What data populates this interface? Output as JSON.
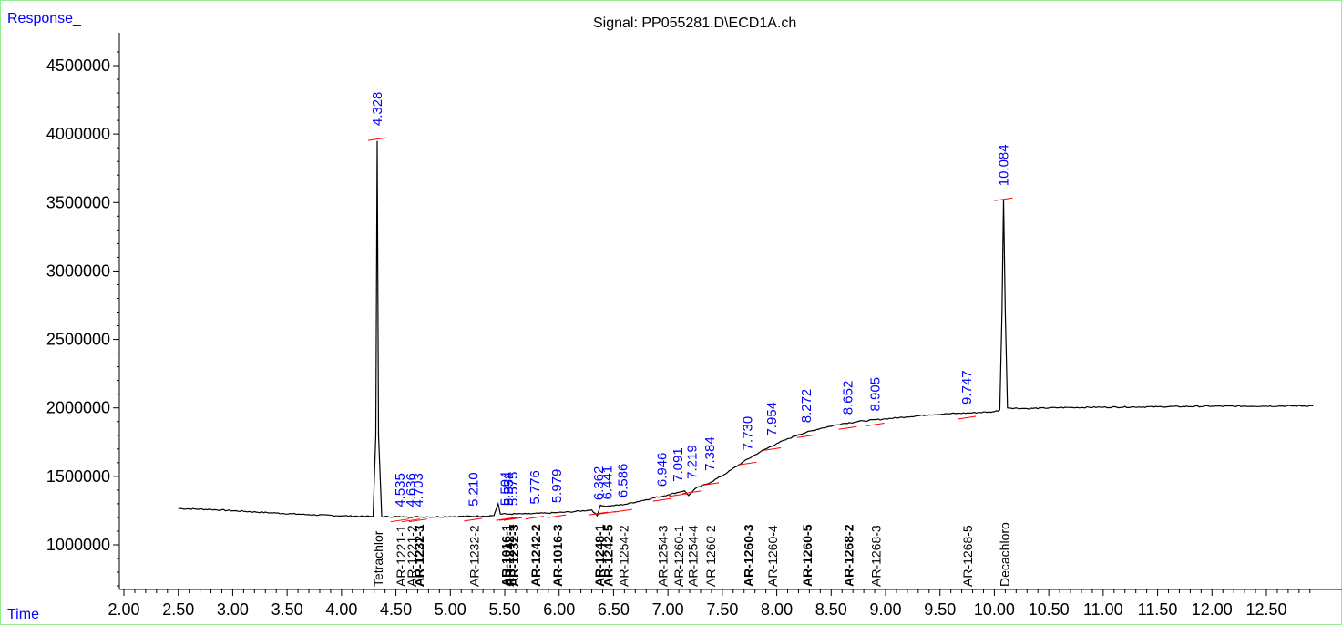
{
  "header": {
    "response_label": "Response_",
    "signal_title": "Signal: PP055281.D\\ECD1A.ch",
    "time_label": "Time"
  },
  "colors": {
    "trace": "#000000",
    "rt_label": "#0000ff",
    "baseline_mark": "#ff0000",
    "axis": "#000000",
    "frame": "#90ee90"
  },
  "chart_data": {
    "type": "line",
    "title": "Signal: PP055281.D\\ECD1A.ch",
    "xlabel": "Time",
    "ylabel": "Response_",
    "xlim": [
      1.98,
      12.93
    ],
    "ylim": [
      650000,
      4700000
    ],
    "xticks": [
      "2.00",
      "2.50",
      "3.00",
      "3.50",
      "4.00",
      "4.50",
      "5.00",
      "5.50",
      "6.00",
      "6.50",
      "7.00",
      "7.50",
      "8.00",
      "8.50",
      "9.00",
      "9.50",
      "10.00",
      "10.50",
      "11.00",
      "11.50",
      "12.00",
      "12.50"
    ],
    "yticks": [
      "1000000",
      "1500000",
      "2000000",
      "2500000",
      "3000000",
      "3500000",
      "4000000",
      "4500000"
    ],
    "grid": false,
    "series": [
      {
        "values": [
          [
            2.5,
            1265000
          ],
          [
            2.8,
            1258000
          ],
          [
            3.1,
            1245000
          ],
          [
            3.4,
            1232000
          ],
          [
            3.7,
            1220000
          ],
          [
            4.0,
            1212000
          ],
          [
            4.2,
            1208000
          ],
          [
            4.29,
            1208000
          ],
          [
            4.315,
            1800000
          ],
          [
            4.328,
            3950000
          ],
          [
            4.34,
            1800000
          ],
          [
            4.37,
            1206000
          ],
          [
            4.6,
            1204000
          ],
          [
            4.8,
            1204000
          ],
          [
            5.0,
            1206000
          ],
          [
            5.3,
            1210000
          ],
          [
            5.4,
            1214000
          ],
          [
            5.44,
            1300000
          ],
          [
            5.46,
            1225000
          ],
          [
            5.55,
            1225000
          ],
          [
            5.7,
            1226000
          ],
          [
            5.9,
            1232000
          ],
          [
            6.1,
            1240000
          ],
          [
            6.3,
            1255000
          ],
          [
            6.35,
            1212000
          ],
          [
            6.38,
            1290000
          ],
          [
            6.44,
            1282000
          ],
          [
            6.6,
            1295000
          ],
          [
            6.8,
            1330000
          ],
          [
            7.0,
            1365000
          ],
          [
            7.15,
            1395000
          ],
          [
            7.19,
            1360000
          ],
          [
            7.25,
            1410000
          ],
          [
            7.4,
            1460000
          ],
          [
            7.55,
            1530000
          ],
          [
            7.7,
            1610000
          ],
          [
            7.85,
            1680000
          ],
          [
            8.0,
            1740000
          ],
          [
            8.2,
            1805000
          ],
          [
            8.4,
            1850000
          ],
          [
            8.6,
            1885000
          ],
          [
            8.8,
            1905000
          ],
          [
            9.0,
            1920000
          ],
          [
            9.2,
            1935000
          ],
          [
            9.4,
            1950000
          ],
          [
            9.6,
            1958000
          ],
          [
            9.8,
            1964000
          ],
          [
            10.0,
            1972000
          ],
          [
            10.05,
            1985000
          ],
          [
            10.07,
            2700000
          ],
          [
            10.084,
            3520000
          ],
          [
            10.1,
            2700000
          ],
          [
            10.12,
            2000000
          ],
          [
            10.3,
            1995000
          ],
          [
            10.6,
            2002000
          ],
          [
            11.0,
            2005000
          ],
          [
            11.5,
            2008000
          ],
          [
            12.0,
            2012000
          ],
          [
            12.5,
            2013000
          ],
          [
            12.93,
            2015000
          ]
        ]
      }
    ],
    "rt_labels": [
      {
        "rt": 4.328,
        "text": "4.328",
        "y": 4020000
      },
      {
        "rt": 4.535,
        "text": "4.535",
        "y": 1235000
      },
      {
        "rt": 4.636,
        "text": "4.636",
        "y": 1235000
      },
      {
        "rt": 4.703,
        "text": "4.703",
        "y": 1235000
      },
      {
        "rt": 5.21,
        "text": "5.210",
        "y": 1240000
      },
      {
        "rt": 5.504,
        "text": "5.504",
        "y": 1245000
      },
      {
        "rt": 5.534,
        "text": "5.534",
        "y": 1245000
      },
      {
        "rt": 5.575,
        "text": "5.575",
        "y": 1245000
      },
      {
        "rt": 5.776,
        "text": "5.776",
        "y": 1255000
      },
      {
        "rt": 5.979,
        "text": "5.979",
        "y": 1265000
      },
      {
        "rt": 6.362,
        "text": "6.362",
        "y": 1285000
      },
      {
        "rt": 6.441,
        "text": "6.441",
        "y": 1290000
      },
      {
        "rt": 6.586,
        "text": "6.586",
        "y": 1305000
      },
      {
        "rt": 6.946,
        "text": "6.946",
        "y": 1385000
      },
      {
        "rt": 7.091,
        "text": "7.091",
        "y": 1420000
      },
      {
        "rt": 7.219,
        "text": "7.219",
        "y": 1440000
      },
      {
        "rt": 7.384,
        "text": "7.384",
        "y": 1500000
      },
      {
        "rt": 7.73,
        "text": "7.730",
        "y": 1650000
      },
      {
        "rt": 7.954,
        "text": "7.954",
        "y": 1755000
      },
      {
        "rt": 8.272,
        "text": "8.272",
        "y": 1850000
      },
      {
        "rt": 8.652,
        "text": "8.652",
        "y": 1910000
      },
      {
        "rt": 8.905,
        "text": "8.905",
        "y": 1935000
      },
      {
        "rt": 9.747,
        "text": "9.747",
        "y": 1985000
      },
      {
        "rt": 10.084,
        "text": "10.084",
        "y": 3580000
      }
    ],
    "compound_labels": [
      {
        "rt": 4.328,
        "text": "Tetrachlor",
        "bold": false
      },
      {
        "rt": 4.535,
        "text": "AR-1221-1",
        "bold": false
      },
      {
        "rt": 4.636,
        "text": "AR-1221-2",
        "bold": false
      },
      {
        "rt": 4.703,
        "text": "AR-1232-1",
        "bold": true
      },
      {
        "rt": 4.703,
        "text": "AR-1221-3",
        "bold": false
      },
      {
        "rt": 5.21,
        "text": "AR-1232-2",
        "bold": false
      },
      {
        "rt": 5.504,
        "text": "AR-1016-1",
        "bold": true
      },
      {
        "rt": 5.534,
        "text": "AR-1242-1",
        "bold": true
      },
      {
        "rt": 5.575,
        "text": "AR-1232-3",
        "bold": true
      },
      {
        "rt": 5.776,
        "text": "AR-1242-2",
        "bold": true
      },
      {
        "rt": 5.979,
        "text": "AR-1016-3",
        "bold": true
      },
      {
        "rt": 6.362,
        "text": "AR-1248-1",
        "bold": true
      },
      {
        "rt": 6.441,
        "text": "AR-1242-5",
        "bold": true
      },
      {
        "rt": 6.586,
        "text": "AR-1254-2",
        "bold": false
      },
      {
        "rt": 6.946,
        "text": "AR-1254-3",
        "bold": false
      },
      {
        "rt": 7.091,
        "text": "AR-1260-1",
        "bold": false
      },
      {
        "rt": 7.219,
        "text": "AR-1254-4",
        "bold": false
      },
      {
        "rt": 7.384,
        "text": "AR-1260-2",
        "bold": false
      },
      {
        "rt": 7.73,
        "text": "AR-1260-3",
        "bold": true
      },
      {
        "rt": 7.954,
        "text": "AR-1260-4",
        "bold": false
      },
      {
        "rt": 8.272,
        "text": "AR-1260-5",
        "bold": true
      },
      {
        "rt": 8.652,
        "text": "AR-1268-2",
        "bold": true
      },
      {
        "rt": 8.905,
        "text": "AR-1268-3",
        "bold": false
      },
      {
        "rt": 9.747,
        "text": "AR-1268-5",
        "bold": false
      },
      {
        "rt": 10.084,
        "text": "Decachloro",
        "bold": false
      }
    ]
  }
}
